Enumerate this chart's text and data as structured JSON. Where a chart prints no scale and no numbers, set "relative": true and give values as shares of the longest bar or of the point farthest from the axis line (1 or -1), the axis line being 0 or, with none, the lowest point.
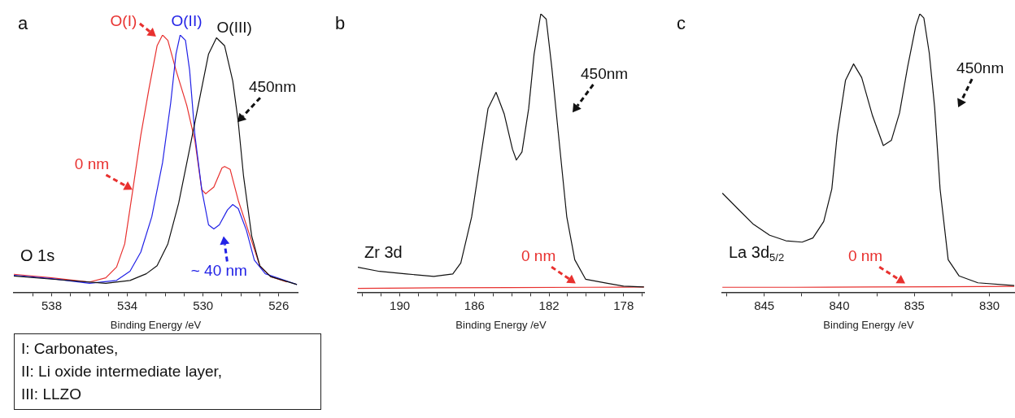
{
  "chart_data": [
    {
      "type": "line",
      "title": "a",
      "xlabel": "Binding Energy /eV",
      "relative": true,
      "xlim": [
        540,
        525
      ],
      "xticks": [
        {
          "value": 539,
          "label": null
        },
        538,
        {
          "value": 537,
          "label": null
        },
        {
          "value": 536,
          "label": null
        },
        {
          "value": 535,
          "label": null
        },
        534,
        {
          "value": 533,
          "label": null
        },
        {
          "value": 532,
          "label": null
        },
        {
          "value": 531,
          "label": null
        },
        530,
        {
          "value": 529,
          "label": null
        },
        {
          "value": 528,
          "label": null
        },
        {
          "value": 527,
          "label": null
        },
        526
      ],
      "series": [
        {
          "name": "0 nm",
          "color": "#e8312f",
          "x": [
            540.0,
            538.0,
            536.0,
            535.14,
            534.57,
            534.14,
            533.71,
            533.29,
            532.86,
            532.43,
            532.14,
            531.86,
            531.43,
            530.86,
            530.43,
            530.07,
            529.86,
            529.43,
            529.0,
            528.86,
            528.57,
            528.14,
            527.57,
            527.0,
            526.43,
            525.57
          ],
          "values": [
            0.07,
            0.056,
            0.04,
            0.056,
            0.098,
            0.188,
            0.399,
            0.61,
            0.79,
            0.958,
            1.0,
            0.979,
            0.863,
            0.726,
            0.589,
            0.399,
            0.383,
            0.409,
            0.483,
            0.489,
            0.478,
            0.357,
            0.23,
            0.103,
            0.061,
            0.04
          ]
        },
        {
          "name": "~ 40 nm",
          "color": "#2222e6",
          "x": [
            540.0,
            538.0,
            536.0,
            534.57,
            533.86,
            533.29,
            532.71,
            532.14,
            531.71,
            531.43,
            531.21,
            530.93,
            530.71,
            530.43,
            530.07,
            529.71,
            529.43,
            529.14,
            528.71,
            528.43,
            528.14,
            527.71,
            527.29,
            526.71,
            525.86,
            525.04
          ],
          "values": [
            0.066,
            0.053,
            0.035,
            0.046,
            0.082,
            0.156,
            0.293,
            0.504,
            0.736,
            0.926,
            1.0,
            0.979,
            0.863,
            0.61,
            0.399,
            0.262,
            0.246,
            0.262,
            0.32,
            0.341,
            0.325,
            0.241,
            0.125,
            0.072,
            0.051,
            0.03
          ]
        },
        {
          "name": "450nm",
          "color": "#111111",
          "x": [
            540.0,
            538.0,
            535.14,
            533.86,
            533.0,
            532.43,
            531.86,
            531.29,
            530.71,
            530.14,
            529.71,
            529.29,
            528.86,
            528.43,
            528.14,
            527.86,
            527.43,
            527.0,
            526.43,
            525.57,
            525.04
          ],
          "values": [
            0.063,
            0.051,
            0.035,
            0.046,
            0.072,
            0.103,
            0.188,
            0.346,
            0.557,
            0.768,
            0.926,
            0.989,
            0.958,
            0.821,
            0.662,
            0.451,
            0.219,
            0.103,
            0.061,
            0.042,
            0.03
          ]
        }
      ],
      "annotations": [
        {
          "text": "O(I)",
          "x": 532.14,
          "y": 1.0
        },
        {
          "text": "O(II)",
          "x": 531.21,
          "y": 1.0
        },
        {
          "text": "O(III)",
          "x": 529.29,
          "y": 0.989
        },
        "O 1s",
        "I: Carbonates,",
        "II: Li oxide intermediate layer,",
        "III: LLZO"
      ]
    },
    {
      "type": "line",
      "title": "b",
      "xlabel": "Binding Energy /eV",
      "relative": true,
      "xlim": [
        192.25,
        176.9
      ],
      "xticks": [
        {
          "value": 192,
          "label": null
        },
        {
          "value": 191,
          "label": null
        },
        190,
        {
          "value": 189,
          "label": null
        },
        {
          "value": 188,
          "label": null
        },
        {
          "value": 187,
          "label": null
        },
        186,
        {
          "value": 185,
          "label": null
        },
        {
          "value": 184,
          "label": null
        },
        {
          "value": 183,
          "label": null
        },
        182,
        {
          "value": 181,
          "label": null
        },
        {
          "value": 180,
          "label": null
        },
        {
          "value": 179,
          "label": null
        },
        178,
        {
          "value": 177,
          "label": null
        }
      ],
      "series": [
        {
          "name": "0 nm",
          "color": "#e8312f",
          "x": [
            192.25,
            188.0,
            184.0,
            180.0,
            176.91
          ],
          "values": [
            0.014,
            0.016,
            0.017,
            0.018,
            0.019
          ]
        },
        {
          "name": "450nm",
          "color": "#111111",
          "x": [
            192.25,
            191.09,
            189.64,
            188.18,
            187.16,
            186.73,
            186.15,
            185.71,
            185.27,
            184.84,
            184.4,
            183.96,
            183.75,
            183.45,
            183.09,
            182.8,
            182.44,
            182.15,
            181.85,
            181.49,
            181.05,
            180.62,
            180.04,
            178.87,
            178.0,
            176.91
          ],
          "values": [
            0.09,
            0.075,
            0.066,
            0.057,
            0.066,
            0.105,
            0.27,
            0.465,
            0.66,
            0.718,
            0.64,
            0.514,
            0.475,
            0.504,
            0.66,
            0.855,
            1.0,
            0.981,
            0.807,
            0.564,
            0.272,
            0.117,
            0.047,
            0.032,
            0.022,
            0.019
          ]
        }
      ],
      "annotations": [
        "Zr 3d"
      ]
    },
    {
      "type": "line",
      "title": "c",
      "xlabel": "Binding Energy /eV",
      "relative": true,
      "xlim": [
        847.8,
        828.3
      ],
      "xticks": [
        {
          "value": 847.5,
          "label": null
        },
        845,
        {
          "value": 842.5,
          "label": null
        },
        840,
        {
          "value": 837.5,
          "label": null
        },
        835,
        {
          "value": 832.5,
          "label": null
        },
        830
      ],
      "series": [
        {
          "name": "0 nm",
          "color": "#e8312f",
          "x": [
            847.79,
            843.0,
            838.0,
            833.0,
            828.35
          ],
          "values": [
            0.018,
            0.018,
            0.019,
            0.02,
            0.021
          ]
        },
        {
          "name": "450nm",
          "color": "#111111",
          "x": [
            847.79,
            846.8,
            845.72,
            844.64,
            843.56,
            842.48,
            841.76,
            841.04,
            840.5,
            840.14,
            839.59,
            839.05,
            838.51,
            837.79,
            837.07,
            836.53,
            835.99,
            835.45,
            834.91,
            834.64,
            834.37,
            834.01,
            833.65,
            833.29,
            832.75,
            832.03,
            830.77,
            828.35
          ],
          "values": [
            0.356,
            0.302,
            0.244,
            0.205,
            0.185,
            0.18,
            0.195,
            0.254,
            0.371,
            0.566,
            0.761,
            0.82,
            0.771,
            0.634,
            0.527,
            0.546,
            0.644,
            0.81,
            0.956,
            1.0,
            0.985,
            0.859,
            0.663,
            0.371,
            0.117,
            0.059,
            0.034,
            0.024
          ]
        }
      ],
      "annotations": [
        "La 3d$_{5/2}$"
      ]
    }
  ]
}
